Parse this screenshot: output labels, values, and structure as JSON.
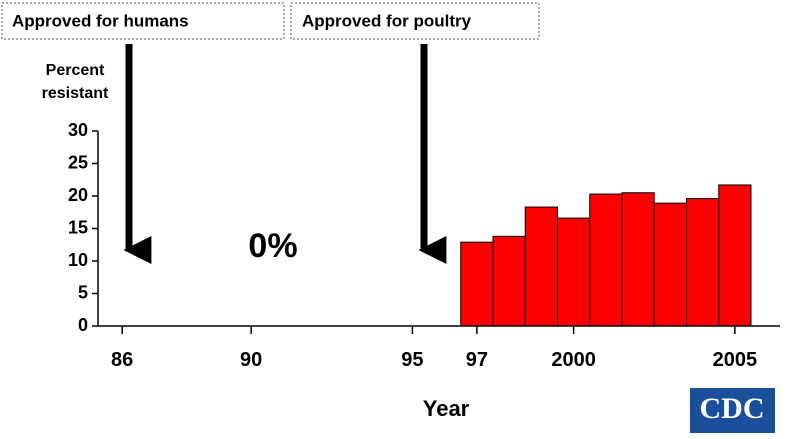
{
  "chart_data": {
    "type": "bar",
    "annotations": [
      "Approved for humans",
      "Approved for poultry",
      "0%"
    ],
    "ylabel": [
      "Percent",
      "resistant"
    ],
    "xlabel": "Year",
    "logo": "CDC",
    "x": [
      1997,
      1998,
      1999,
      2000,
      2001,
      2002,
      2003,
      2004,
      2005
    ],
    "values": [
      12.9,
      13.8,
      18.3,
      16.6,
      20.3,
      20.5,
      18.9,
      19.6,
      21.7
    ],
    "color": "#ff0000",
    "xlim": [
      1985.25,
      2006.4
    ],
    "xticks": [
      {
        "value": 1986,
        "label": "86"
      },
      {
        "value": 1990,
        "label": "90"
      },
      {
        "value": 1995,
        "label": "95"
      },
      {
        "value": 1997,
        "label": "97"
      },
      2000,
      2005
    ],
    "ylim": [
      0,
      30
    ],
    "yticks": [
      0,
      5,
      10,
      15,
      20,
      25,
      30
    ]
  }
}
